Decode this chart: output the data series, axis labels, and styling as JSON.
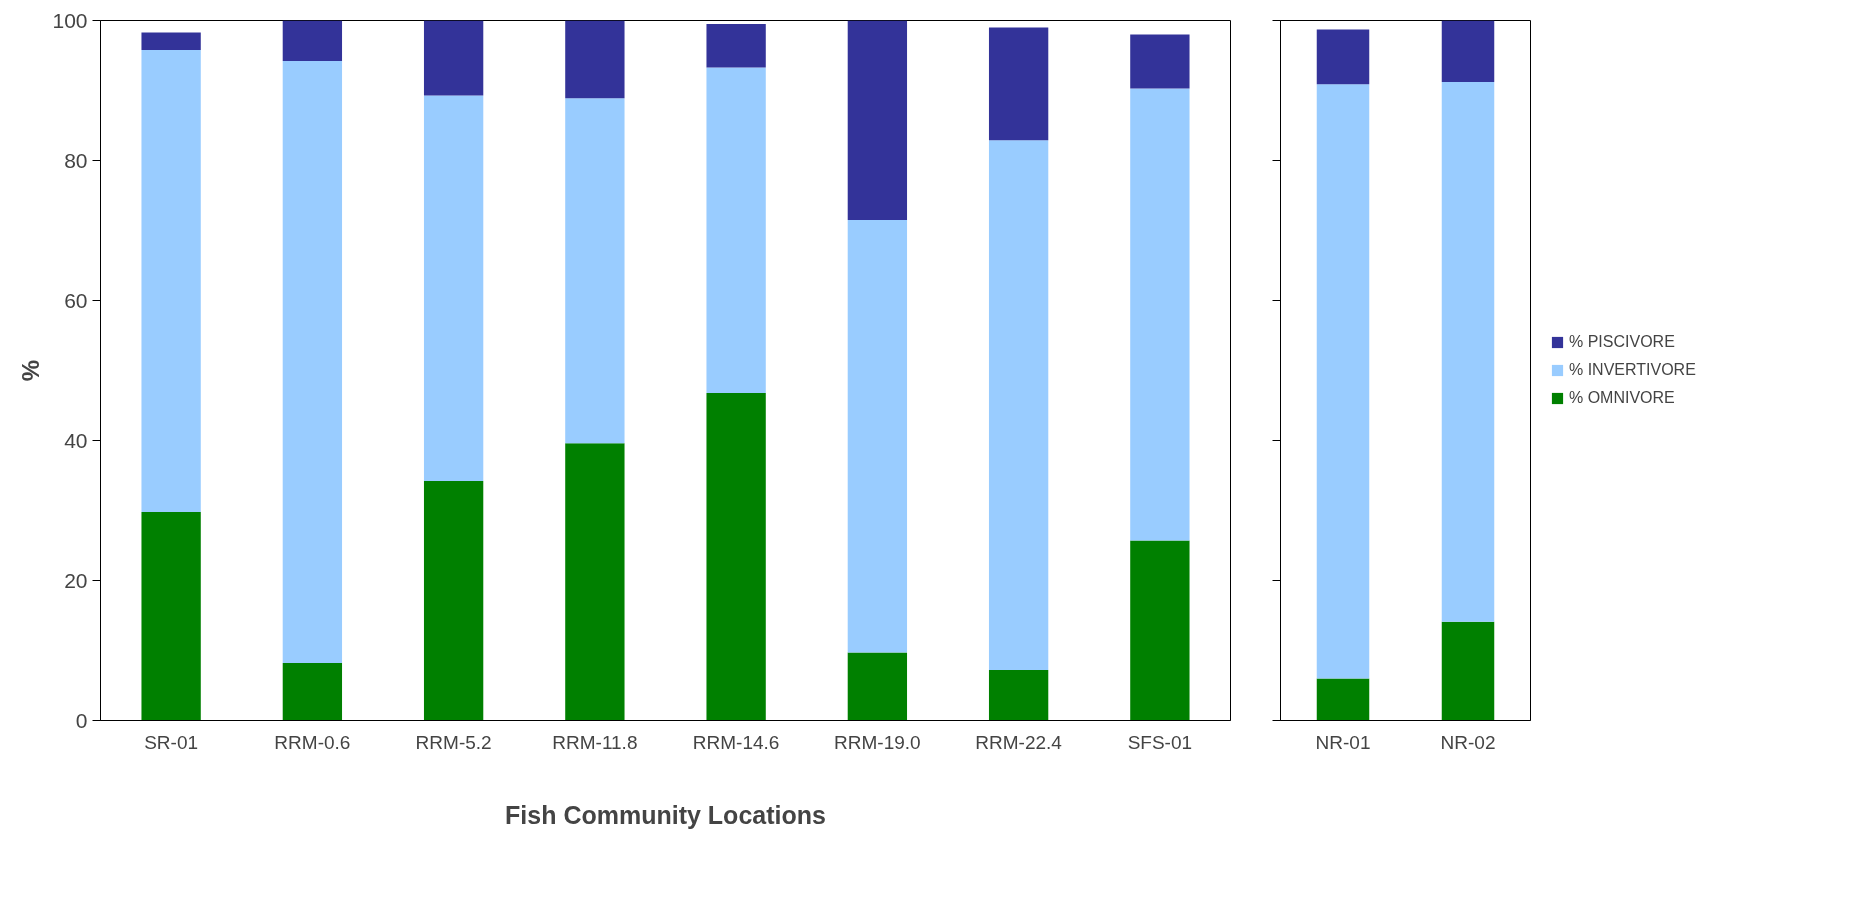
{
  "chart_data": [
    {
      "type": "bar",
      "stacked": true,
      "ylabel": "%",
      "xlabel": "Fish Community Locations",
      "categories": [
        "SR-01",
        "RRM-0.6",
        "RRM-5.2",
        "RRM-11.8",
        "RRM-14.6",
        "RRM-19.0",
        "RRM-22.4",
        "SFS-01"
      ],
      "ylim": [
        0,
        100
      ],
      "yticks": [
        0,
        20,
        40,
        60,
        80,
        100
      ],
      "grid": false,
      "legend": false,
      "series": [
        {
          "color": "#008000",
          "values": [
            29.8,
            8.2,
            34.2,
            39.6,
            46.8,
            9.7,
            7.2,
            25.7
          ]
        },
        {
          "color": "#99ccff",
          "values": [
            66.0,
            86.0,
            55.1,
            49.3,
            46.5,
            61.8,
            75.7,
            64.6
          ]
        },
        {
          "color": "#333399",
          "values": [
            2.5,
            5.8,
            10.7,
            11.1,
            6.2,
            28.5,
            16.1,
            7.7
          ]
        }
      ]
    },
    {
      "type": "bar",
      "stacked": true,
      "categories": [
        "NR-01",
        "NR-02"
      ],
      "ylim": [
        0,
        100
      ],
      "yticks": [
        {
          "value": 0,
          "label": null
        },
        {
          "value": 20,
          "label": null
        },
        {
          "value": 40,
          "label": null
        },
        {
          "value": 60,
          "label": null
        },
        {
          "value": 80,
          "label": null
        },
        {
          "value": 100,
          "label": null
        }
      ],
      "tick_labels": "x",
      "grid": false,
      "legend": "right",
      "series": [
        {
          "name": "% OMNIVORE",
          "color": "#008000",
          "values": [
            6.0,
            14.1
          ]
        },
        {
          "name": "% INVERTIVORE",
          "color": "#99ccff",
          "values": [
            84.9,
            77.1
          ]
        },
        {
          "name": "% PISCIVORE",
          "color": "#333399",
          "values": [
            7.8,
            8.8
          ]
        }
      ]
    }
  ]
}
